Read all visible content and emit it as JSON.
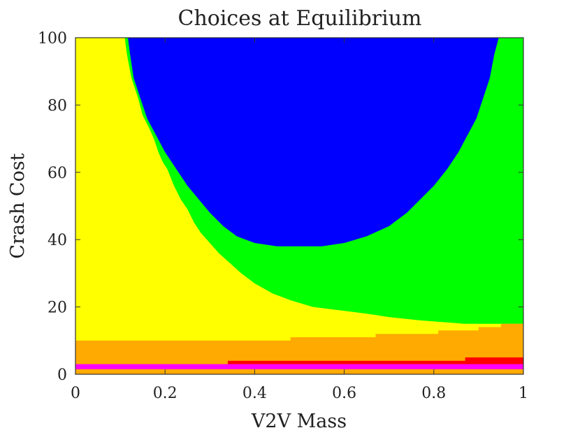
{
  "chart_data": {
    "type": "heatmap",
    "title": "Choices at Equilibrium",
    "xlabel": "V2V Mass",
    "ylabel": "Crash Cost",
    "xlim": [
      0,
      1
    ],
    "ylim": [
      0,
      100
    ],
    "x_ticks": [
      0,
      0.2,
      0.4,
      0.6,
      0.8,
      1
    ],
    "x_tick_labels": [
      "0",
      "0.2",
      "0.4",
      "0.6",
      "0.8",
      "1"
    ],
    "y_ticks": [
      0,
      20,
      40,
      60,
      80,
      100
    ],
    "y_tick_labels": [
      "0",
      "20",
      "40",
      "60",
      "80",
      "100"
    ],
    "grid": false,
    "region_colors": {
      "yellow": "#ffff00",
      "green": "#00ff00",
      "blue": "#0000ff",
      "orange": "#ffaa00",
      "red": "#ff0000",
      "magenta": "#ff00ff"
    },
    "regions": {
      "magenta_band": {
        "y_from": 1.5,
        "y_to": 3
      },
      "red_region": {
        "top": [
          [
            0.34,
            4
          ],
          [
            0.87,
            4
          ],
          [
            0.87,
            5
          ],
          [
            1,
            5
          ]
        ]
      },
      "orange_region": {
        "top": [
          [
            0,
            10
          ],
          [
            0.48,
            10
          ],
          [
            0.48,
            11
          ],
          [
            0.67,
            11
          ],
          [
            0.67,
            12
          ],
          [
            0.81,
            12
          ],
          [
            0.81,
            13
          ],
          [
            0.9,
            13
          ],
          [
            0.9,
            14
          ],
          [
            0.95,
            14
          ],
          [
            0.95,
            15
          ],
          [
            1,
            15
          ]
        ]
      },
      "green_lower_boundary": [
        [
          0.35,
          28
        ],
        [
          0.41,
          25
        ],
        [
          0.47,
          22
        ],
        [
          0.53,
          20
        ],
        [
          0.59,
          19
        ],
        [
          0.65,
          18
        ],
        [
          0.7,
          17
        ],
        [
          0.77,
          16
        ],
        [
          0.87,
          15
        ],
        [
          1,
          15
        ]
      ],
      "green_left_boundary": [
        [
          0.11,
          100
        ],
        [
          0.115,
          95
        ],
        [
          0.125,
          88
        ],
        [
          0.14,
          82
        ],
        [
          0.15,
          77
        ],
        [
          0.165,
          73
        ],
        [
          0.175,
          70
        ],
        [
          0.185,
          66
        ],
        [
          0.195,
          63
        ],
        [
          0.205,
          61
        ],
        [
          0.22,
          56
        ],
        [
          0.235,
          52
        ],
        [
          0.25,
          49
        ],
        [
          0.265,
          45
        ],
        [
          0.28,
          42
        ],
        [
          0.3,
          39
        ],
        [
          0.32,
          36
        ],
        [
          0.345,
          33
        ],
        [
          0.37,
          30
        ],
        [
          0.4,
          27
        ],
        [
          0.44,
          24
        ],
        [
          0.48,
          22
        ],
        [
          0.53,
          20
        ],
        [
          0.59,
          19
        ],
        [
          0.65,
          18
        ],
        [
          0.7,
          17
        ],
        [
          0.77,
          16
        ],
        [
          0.87,
          15
        ],
        [
          1.0,
          15
        ]
      ],
      "blue_region": [
        [
          0.117,
          100
        ],
        [
          0.122,
          95
        ],
        [
          0.13,
          88
        ],
        [
          0.145,
          82
        ],
        [
          0.16,
          76
        ],
        [
          0.18,
          71
        ],
        [
          0.2,
          66
        ],
        [
          0.225,
          61
        ],
        [
          0.25,
          56
        ],
        [
          0.275,
          52
        ],
        [
          0.3,
          48
        ],
        [
          0.33,
          44
        ],
        [
          0.36,
          41
        ],
        [
          0.4,
          39
        ],
        [
          0.45,
          38
        ],
        [
          0.5,
          38
        ],
        [
          0.55,
          38
        ],
        [
          0.6,
          39
        ],
        [
          0.65,
          41
        ],
        [
          0.7,
          44
        ],
        [
          0.74,
          48
        ],
        [
          0.77,
          52
        ],
        [
          0.8,
          56
        ],
        [
          0.83,
          61
        ],
        [
          0.855,
          66
        ],
        [
          0.875,
          71
        ],
        [
          0.895,
          76
        ],
        [
          0.91,
          82
        ],
        [
          0.925,
          88
        ],
        [
          0.935,
          95
        ],
        [
          0.945,
          100
        ]
      ]
    }
  }
}
